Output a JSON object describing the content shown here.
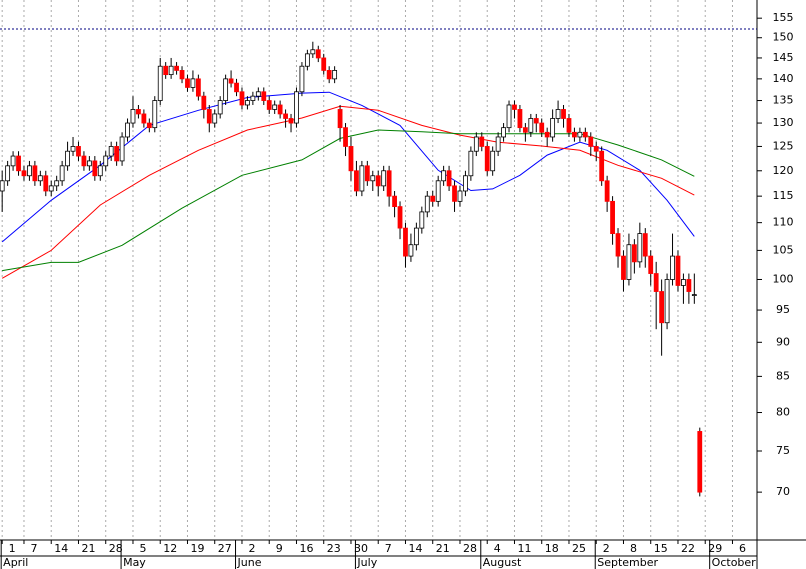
{
  "chart_data": {
    "type": "candlestick",
    "log_y": true,
    "grid": true,
    "xlim": [
      -0.4,
      138.5
    ],
    "ylim": [
      64.6,
      159.8
    ],
    "yticks": [
      70,
      75,
      80,
      85,
      90,
      95,
      100,
      105,
      110,
      115,
      120,
      125,
      130,
      135,
      140,
      145,
      150,
      155
    ],
    "xticks": [
      {
        "value": 0,
        "label": "1"
      },
      {
        "value": 4,
        "label": "7"
      },
      {
        "value": 9,
        "label": "14"
      },
      {
        "value": 14,
        "label": "21"
      },
      {
        "value": 19,
        "label": "28"
      },
      {
        "value": 24,
        "label": "5"
      },
      {
        "value": 29,
        "label": "12"
      },
      {
        "value": 34,
        "label": "19"
      },
      {
        "value": 39,
        "label": "27"
      },
      {
        "value": 44,
        "label": "2"
      },
      {
        "value": 49,
        "label": "9"
      },
      {
        "value": 54,
        "label": "16"
      },
      {
        "value": 59,
        "label": "23"
      },
      {
        "value": 64,
        "label": "30"
      },
      {
        "value": 69,
        "label": "7"
      },
      {
        "value": 74,
        "label": "14"
      },
      {
        "value": 79,
        "label": "21"
      },
      {
        "value": 84,
        "label": "28"
      },
      {
        "value": 89,
        "label": "4"
      },
      {
        "value": 94,
        "label": "11"
      },
      {
        "value": 99,
        "label": "18"
      },
      {
        "value": 104,
        "label": "25"
      },
      {
        "value": 109,
        "label": "2"
      },
      {
        "value": 114,
        "label": "8"
      },
      {
        "value": 119,
        "label": "15"
      },
      {
        "value": 124,
        "label": "22"
      },
      {
        "value": 129,
        "label": "29"
      },
      {
        "value": 134,
        "label": "6"
      }
    ],
    "months": [
      {
        "value": 0,
        "label": "April"
      },
      {
        "value": 22,
        "label": "May"
      },
      {
        "value": 43,
        "label": "June"
      },
      {
        "value": 65,
        "label": "July"
      },
      {
        "value": 88,
        "label": "August"
      },
      {
        "value": 109,
        "label": "September"
      },
      {
        "value": 130,
        "label": "October"
      }
    ],
    "up_color": "#ffffff",
    "down_color": "#ff0000",
    "open": [
      116,
      118,
      121,
      123,
      120,
      119,
      121,
      118,
      119,
      116,
      117,
      118,
      121,
      124,
      125,
      123,
      121,
      122,
      119,
      121,
      123,
      125,
      122,
      127,
      130,
      133,
      132,
      130,
      129,
      135,
      143,
      141,
      143,
      142,
      140,
      138,
      140,
      136,
      133,
      130,
      132,
      135,
      140,
      139,
      137,
      134,
      135,
      136,
      137,
      135,
      133,
      134,
      132,
      131,
      130,
      137,
      143,
      146,
      147,
      145,
      142,
      140,
      133,
      129,
      125,
      120,
      116,
      121,
      118,
      119,
      117,
      120,
      115,
      113,
      109,
      104,
      106,
      109,
      112,
      115,
      114,
      118,
      120,
      117,
      114,
      116,
      119,
      124,
      127,
      125,
      120,
      124,
      127,
      129,
      134,
      133,
      129,
      128,
      131,
      130,
      128,
      127,
      131,
      133,
      131,
      128,
      127,
      128,
      127,
      125,
      124,
      118,
      114,
      108,
      104,
      100,
      106,
      103,
      108,
      104,
      101,
      98,
      93,
      100,
      104,
      99,
      100,
      97.5,
      77.5
    ],
    "high": [
      120,
      122,
      124,
      124,
      121,
      122,
      122,
      120,
      120,
      118,
      119,
      122,
      126,
      127,
      126,
      124,
      123,
      123,
      122,
      124,
      126,
      126,
      128,
      131,
      136,
      134,
      133,
      131,
      136,
      145,
      144,
      145,
      144,
      143,
      141,
      142,
      141,
      137,
      134,
      133,
      136,
      141,
      142,
      140,
      138,
      136,
      137,
      138,
      138,
      136,
      135,
      135,
      133,
      132,
      138,
      144,
      147,
      149,
      148,
      146,
      143,
      143,
      134,
      130,
      127,
      122,
      122,
      122,
      120,
      120,
      121,
      121,
      116,
      114,
      110,
      108,
      110,
      113,
      116,
      116,
      119,
      121,
      121,
      118,
      117,
      120,
      125,
      128,
      128,
      126,
      125,
      128,
      130,
      135,
      135,
      134,
      130,
      132,
      132,
      131,
      129,
      133,
      135,
      134,
      132,
      129,
      129,
      129,
      128,
      126,
      125,
      119,
      115,
      109,
      105,
      108,
      107,
      110,
      109,
      105,
      103,
      100,
      101,
      108,
      105,
      101,
      101,
      101,
      78
    ],
    "low": [
      112,
      117,
      120,
      119,
      118,
      118,
      117,
      117,
      115,
      115,
      116,
      117,
      120,
      123,
      122,
      120,
      120,
      118,
      118,
      120,
      122,
      121,
      121,
      126,
      129,
      131,
      129,
      128,
      128,
      134,
      140,
      140,
      141,
      139,
      137,
      137,
      135,
      131,
      128,
      129,
      131,
      134,
      138,
      136,
      133,
      133,
      134,
      135,
      134,
      132,
      132,
      131,
      129,
      128,
      129,
      136,
      142,
      145,
      144,
      141,
      139,
      139,
      126,
      123,
      118,
      115,
      115,
      117,
      116,
      115,
      116,
      113,
      111,
      107,
      102,
      103,
      105,
      108,
      111,
      113,
      113,
      117,
      116,
      112,
      113,
      115,
      118,
      123,
      124,
      119,
      119,
      123,
      126,
      128,
      131,
      128,
      126,
      127,
      128,
      127,
      125,
      126,
      130,
      129,
      127,
      126,
      126,
      126,
      123,
      122,
      117,
      112,
      106,
      102,
      98,
      99,
      101,
      102,
      102,
      99,
      92,
      88,
      92,
      99,
      98,
      96,
      96,
      96,
      69.5
    ],
    "close": [
      118,
      121,
      123,
      120,
      119,
      121,
      118,
      119,
      116,
      117,
      118,
      121,
      124,
      125,
      123,
      121,
      122,
      119,
      121,
      123,
      125,
      122,
      127,
      130,
      133,
      132,
      130,
      129,
      135,
      143,
      141,
      143,
      142,
      140,
      138,
      140,
      136,
      133,
      130,
      132,
      135,
      140,
      139,
      137,
      134,
      135,
      136,
      137,
      135,
      133,
      134,
      132,
      131,
      130,
      137,
      143,
      146,
      147,
      145,
      142,
      140,
      142,
      129,
      125,
      120,
      116,
      121,
      118,
      119,
      117,
      120,
      115,
      113,
      109,
      104,
      106,
      109,
      112,
      115,
      114,
      118,
      120,
      117,
      114,
      116,
      119,
      124,
      127,
      125,
      120,
      124,
      127,
      129,
      134,
      133,
      129,
      128,
      131,
      130,
      128,
      127,
      131,
      133,
      131,
      128,
      127,
      128,
      127,
      125,
      124,
      118,
      114,
      108,
      104,
      100,
      106,
      103,
      108,
      104,
      101,
      98,
      93,
      100,
      104,
      99,
      100,
      98,
      97.5,
      70
    ],
    "series": [
      {
        "color": "#0000ff",
        "x": [
          0,
          9,
          18,
          27,
          36,
          45,
          55,
          60,
          66,
          73,
          80,
          86,
          90,
          95,
          100,
          106,
          111,
          117,
          122,
          127
        ],
        "values": [
          106.5,
          114.2,
          121.1,
          129.5,
          132.8,
          135.7,
          136.7,
          136.9,
          133.9,
          129.5,
          120.1,
          116.1,
          116.4,
          119.1,
          123.2,
          125.9,
          124.2,
          120.1,
          114.2,
          107.5
        ]
      },
      {
        "color": "#ff0000",
        "x": [
          0,
          9,
          18,
          27,
          36,
          45,
          55,
          62,
          69,
          77,
          84,
          91,
          99,
          106,
          113,
          121,
          127
        ],
        "values": [
          100.2,
          105,
          113.3,
          119.1,
          124.2,
          128.5,
          131.1,
          133.7,
          132.8,
          129.5,
          127.4,
          125.9,
          125.1,
          124.2,
          121.1,
          118.5,
          115.2
        ]
      },
      {
        "color": "#008000",
        "x": [
          0,
          9,
          14,
          22,
          33,
          44,
          55,
          62,
          69,
          77,
          84,
          95,
          106,
          113,
          121,
          127
        ],
        "values": [
          101.5,
          102.9,
          102.9,
          105.9,
          112.7,
          119.1,
          122.2,
          126.7,
          128.5,
          128.1,
          127.7,
          127.7,
          127.7,
          125.3,
          122.2,
          118.9
        ]
      }
    ],
    "hline": {
      "value": 152.2,
      "color": "#000080"
    }
  }
}
